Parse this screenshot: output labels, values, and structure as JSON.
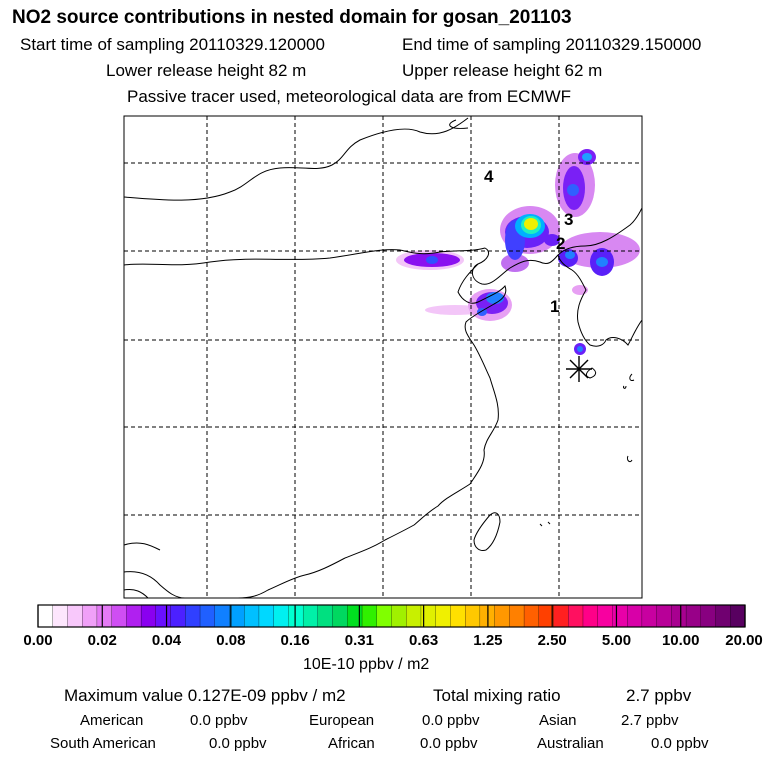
{
  "header": {
    "title": "NO2 source contributions in nested domain for gosan_201103",
    "start_time": "Start time of sampling 20110329.120000",
    "end_time": "End time of sampling 20110329.150000",
    "lower_height": "Lower release height   82 m",
    "upper_height": "Upper release height   62 m",
    "note": "Passive tracer used, meteorological data are from ECMWF"
  },
  "map": {
    "labels": [
      "1",
      "2",
      "3",
      "4"
    ],
    "station_marker": "asterisk-icon"
  },
  "colorbar": {
    "ticks": [
      "0.00",
      "0.02",
      "0.04",
      "0.08",
      "0.16",
      "0.31",
      "0.63",
      "1.25",
      "2.50",
      "5.00",
      "10.00",
      "20.00"
    ],
    "units": "10E-10 ppbv / m2",
    "colors": [
      "#ffffff",
      "#fde6fd",
      "#f8c8fb",
      "#f0a0f8",
      "#e47af5",
      "#cf4ef3",
      "#b020f0",
      "#8a00f0",
      "#6a10ff",
      "#4c20ff",
      "#3040ff",
      "#2060ff",
      "#1080ff",
      "#00a0ff",
      "#00c0ff",
      "#00d8ff",
      "#00f0f0",
      "#00ffd0",
      "#00f0a8",
      "#00e080",
      "#00d860",
      "#00e020",
      "#30f000",
      "#80ff00",
      "#a0f000",
      "#c8f000",
      "#e0f000",
      "#f0f000",
      "#ffe000",
      "#ffc800",
      "#ffb000",
      "#ff9800",
      "#ff8000",
      "#ff6000",
      "#ff4000",
      "#ff2020",
      "#ff1060",
      "#ff0088",
      "#f800a0",
      "#e800a8",
      "#d800a8",
      "#c800a0",
      "#b80098",
      "#a80090",
      "#980088",
      "#880080",
      "#700070",
      "#580060"
    ]
  },
  "summary": {
    "max_value": "Maximum value  0.127E-09 ppbv / m2",
    "total_label": "Total mixing ratio",
    "total_value": "2.7 ppbv",
    "rows": [
      [
        {
          "name": "American",
          "value": "0.0 ppbv"
        },
        {
          "name": "European",
          "value": "0.0 ppbv"
        },
        {
          "name": "Asian",
          "value": "2.7 ppbv"
        }
      ],
      [
        {
          "name": "South American",
          "value": "0.0 ppbv"
        },
        {
          "name": "African",
          "value": "0.0 ppbv"
        },
        {
          "name": "Australian",
          "value": "0.0 ppbv"
        }
      ]
    ]
  }
}
